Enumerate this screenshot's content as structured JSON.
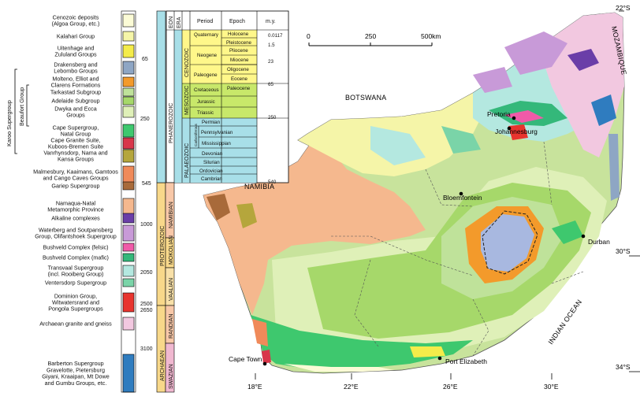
{
  "legend": {
    "items": [
      {
        "label": "Cenozoic deposits\n(Algoa Group, etc.)",
        "color": "#fbfbd6"
      },
      {
        "label": "Kalahari Group",
        "color": "#f5f5a8"
      },
      {
        "label": "Uitenhage and\nZululand Groups",
        "color": "#f4ec4a"
      },
      {
        "label": "Drakensberg and\nLebombo Groups",
        "color": "#8ea6c4"
      },
      {
        "label": "Molteno, Elliot and\nClarens Formations",
        "color": "#f39a2b"
      },
      {
        "label": "Tarkastad Subgroup",
        "color": "#bfe29a"
      },
      {
        "label": "Adelaide Subgroup",
        "color": "#a6d86a"
      },
      {
        "label": "Dwyka and Ecca\nGroups",
        "color": "#dff0b8"
      },
      {
        "label": "Cape Supergroup,\nNatal Group",
        "color": "#3ec86e"
      },
      {
        "label": "Cape Granite Suite,\nKuboos-Bremen Suite",
        "color": "#d8364a"
      },
      {
        "label": "Vanrhynsdorp, Nama and\nKansa Groups",
        "color": "#b5a63c"
      },
      {
        "label": "Malmesbury, Kaaimans, Gamtoos\nand Cango Caves Groups",
        "color": "#f08a5a"
      },
      {
        "label": "Gariep Supergroup",
        "color": "#a86a3a"
      },
      {
        "label": "Namaqua-Natal\nMetamorphic Province",
        "color": "#f5b88e"
      },
      {
        "label": "Alkaline complexes",
        "color": "#6a3ea8"
      },
      {
        "label": "Waterberg and Soutpansberg\nGroup, Olifantshoek Supergroup",
        "color": "#c89ad8"
      },
      {
        "label": "Bushveld Complex (felsic)",
        "color": "#f05aa8"
      },
      {
        "label": "Bushveld Complex (mafic)",
        "color": "#34b87a"
      },
      {
        "label": "Transvaal Supergroup\n(incl. Rooiberg Group)",
        "color": "#b4e8e0"
      },
      {
        "label": "Ventersdorp Supergroup",
        "color": "#7ad4a8"
      },
      {
        "label": "Dominion Group,\nWitwatersrand and\nPongola Supergroups",
        "color": "#e8342e"
      },
      {
        "label": "Archaean granite and gneiss",
        "color": "#f2c8e0"
      },
      {
        "label": "Barberton Supergroup\nGravelotte, Pietersburg\nGiyani, Kraaipan, Mt Dowe\nand Gumbu Groups, etc.",
        "color": "#2f7cbf"
      }
    ],
    "bracket_labels": {
      "karoo": "Karoo Supergroup",
      "beaufort": "Beaufort Group"
    },
    "ages": [
      "65",
      "250",
      "545",
      "1000",
      "2050",
      "2500",
      "2650",
      "3100"
    ],
    "eons": [
      "PHANEROZOIC",
      "PROTEROZOIC",
      "ARCHAEAN"
    ],
    "eras": [
      "CENOZOIC",
      "MESOZOIC",
      "PALAEOZOIC",
      "NAMIBIAN",
      "MOKOLIAN",
      "VAALIAN",
      "RANDIAN",
      "SWAZIAN"
    ]
  },
  "timescale": {
    "headers": {
      "eon": "EON",
      "era": "ERA",
      "period": "Period",
      "epoch": "Epoch",
      "my": "m.y."
    },
    "periods": [
      "Quaternary",
      "Neogene",
      "Paleogene",
      "Cretaceous",
      "Jurassic",
      "Triassic",
      "Permian",
      "Carboniferous",
      "Devonian",
      "Silurian",
      "Ordovician",
      "Cambrian"
    ],
    "carboniferous_subs": [
      "Pennsylvanian",
      "Mississippian"
    ],
    "epochs": [
      "Holocene",
      "Pleistocene",
      "Pliocene",
      "Miocene",
      "Oligocene",
      "Eocene",
      "Paleocene"
    ],
    "my_values": [
      "0.0117",
      "1.5",
      "23",
      "65",
      "250",
      "540"
    ]
  },
  "scalebar": {
    "ticks": [
      "0",
      "250",
      "500km"
    ]
  },
  "map": {
    "countries": [
      "BOTSWANA",
      "NAMIBIA",
      "MOZAMBIQUE"
    ],
    "ocean": "INDIAN OCEAN",
    "cities": [
      "Pretoria",
      "Johannesburg",
      "Bloemfontein",
      "Durban",
      "Cape Town",
      "Port Elizabeth"
    ],
    "lat_labels": [
      "22°S",
      "30°S",
      "34°S"
    ],
    "lon_labels": [
      "18°E",
      "22°E",
      "26°E",
      "30°E"
    ]
  }
}
